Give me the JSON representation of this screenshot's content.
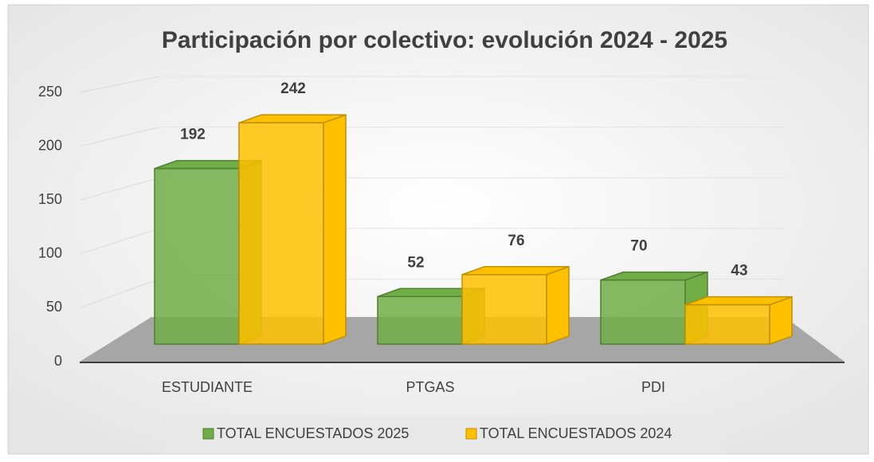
{
  "chart_data": {
    "type": "bar3d",
    "title": "Participación por colectivo: evolución 2024 - 2025",
    "categories": [
      "ESTUDIANTE",
      "PTGAS",
      "PDI"
    ],
    "series": [
      {
        "name": "TOTAL ENCUESTADOS 2025",
        "color": "#70ad47",
        "values": [
          192,
          52,
          70
        ]
      },
      {
        "name": "TOTAL ENCUESTADOS 2024",
        "color": "#ffc000",
        "values": [
          242,
          76,
          43
        ]
      }
    ],
    "ylim": [
      0,
      250
    ],
    "yticks": [
      0,
      50,
      100,
      150,
      200,
      250
    ],
    "grid": true,
    "legend": "bottom"
  }
}
